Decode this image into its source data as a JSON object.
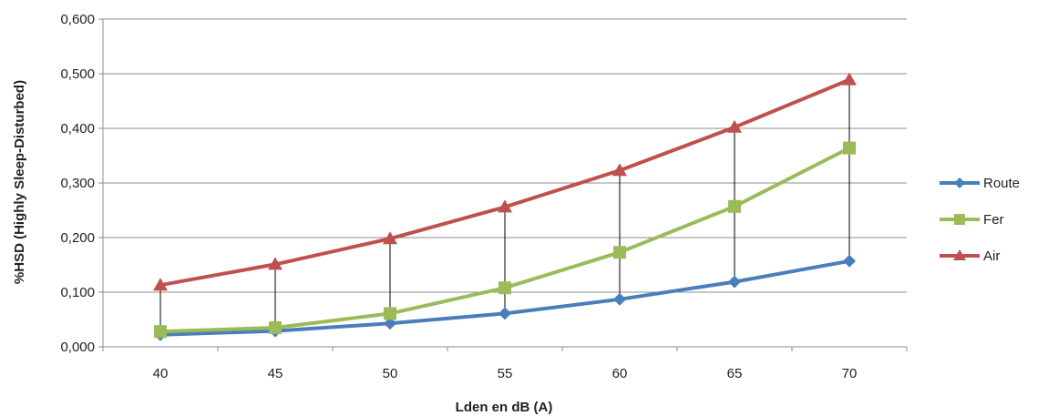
{
  "chart_data": {
    "type": "line",
    "title": "",
    "xlabel": "Lden en dB (A)",
    "ylabel": "%HSD (Highly Sleep-Disturbed)",
    "x": [
      40,
      45,
      50,
      55,
      60,
      65,
      70
    ],
    "x_tick_labels": [
      "40",
      "45",
      "50",
      "55",
      "60",
      "65",
      "70"
    ],
    "ylim": [
      0,
      0.6
    ],
    "y_ticks": [
      0,
      0.1,
      0.2,
      0.3,
      0.4,
      0.5,
      0.6
    ],
    "y_tick_labels": [
      "0,000",
      "0,100",
      "0,200",
      "0,300",
      "0,400",
      "0,500",
      "0,600"
    ],
    "grid": "horizontal",
    "legend_position": "right",
    "drop_lines": true,
    "series": [
      {
        "name": "Route",
        "color": "#4a7ebb",
        "marker": "diamond",
        "values": [
          0.022,
          0.029,
          0.043,
          0.061,
          0.087,
          0.119,
          0.157
        ]
      },
      {
        "name": "Fer",
        "color": "#9bbb59",
        "marker": "square",
        "values": [
          0.028,
          0.035,
          0.061,
          0.108,
          0.173,
          0.257,
          0.364
        ]
      },
      {
        "name": "Air",
        "color": "#c0504d",
        "marker": "triangle",
        "values": [
          0.113,
          0.151,
          0.198,
          0.256,
          0.323,
          0.402,
          0.489
        ]
      }
    ]
  }
}
